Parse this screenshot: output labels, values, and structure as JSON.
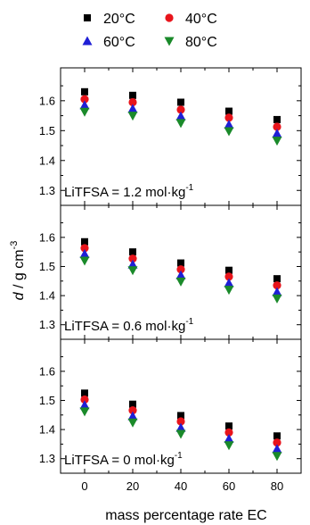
{
  "chart_data": {
    "type": "scatter",
    "xlabel": "mass percentage rate EC",
    "ylabel": "d / g cm",
    "ylabel_superscript": "-3",
    "x": [
      0,
      20,
      40,
      60,
      80
    ],
    "x_ticks": [
      "0",
      "20",
      "40",
      "60",
      "80"
    ],
    "xlim": [
      -10,
      90
    ],
    "ylim": [
      1.25,
      1.71
    ],
    "y_ticks": [
      "1.3",
      "1.4",
      "1.5",
      "1.6"
    ],
    "legend": {
      "placement": "top",
      "entries": [
        {
          "name": "20°C",
          "marker": "square",
          "color": "#000000"
        },
        {
          "name": "40°C",
          "marker": "circle",
          "color": "#e8141b"
        },
        {
          "name": "60°C",
          "marker": "triangle-up",
          "color": "#1f1fd6"
        },
        {
          "name": "80°C",
          "marker": "triangle-down",
          "color": "#1a8a2a"
        }
      ]
    },
    "panels": [
      {
        "label_main": "LiTFSA = 1.2 mol·kg",
        "label_sup": "-1",
        "series": [
          {
            "name": "20°C",
            "values": [
              1.63,
              1.618,
              1.595,
              1.565,
              1.537
            ]
          },
          {
            "name": "40°C",
            "values": [
              1.605,
              1.595,
              1.57,
              1.543,
              1.513
            ]
          },
          {
            "name": "60°C",
            "values": [
              1.585,
              1.573,
              1.548,
              1.52,
              1.49
            ]
          },
          {
            "name": "80°C",
            "values": [
              1.563,
              1.55,
              1.525,
              1.498,
              1.466
            ]
          }
        ]
      },
      {
        "label_main": "LiTFSA = 0.6 mol·kg",
        "label_sup": "-1",
        "series": [
          {
            "name": "20°C",
            "values": [
              1.585,
              1.55,
              1.512,
              1.487,
              1.458
            ]
          },
          {
            "name": "40°C",
            "values": [
              1.563,
              1.527,
              1.49,
              1.465,
              1.435
            ]
          },
          {
            "name": "60°C",
            "values": [
              1.543,
              1.507,
              1.47,
              1.443,
              1.412
            ]
          },
          {
            "name": "80°C",
            "values": [
              1.52,
              1.487,
              1.448,
              1.42,
              1.39
            ]
          }
        ]
      },
      {
        "label_main": "LiTFSA = 0 mol·kg",
        "label_sup": "-1",
        "series": [
          {
            "name": "20°C",
            "values": [
              1.525,
              1.487,
              1.448,
              1.412,
              1.378
            ]
          },
          {
            "name": "40°C",
            "values": [
              1.503,
              1.466,
              1.428,
              1.39,
              1.355
            ]
          },
          {
            "name": "60°C",
            "values": [
              1.484,
              1.446,
              1.406,
              1.368,
              1.333
            ]
          },
          {
            "name": "80°C",
            "values": [
              1.462,
              1.424,
              1.385,
              1.346,
              1.309
            ]
          }
        ]
      }
    ]
  }
}
